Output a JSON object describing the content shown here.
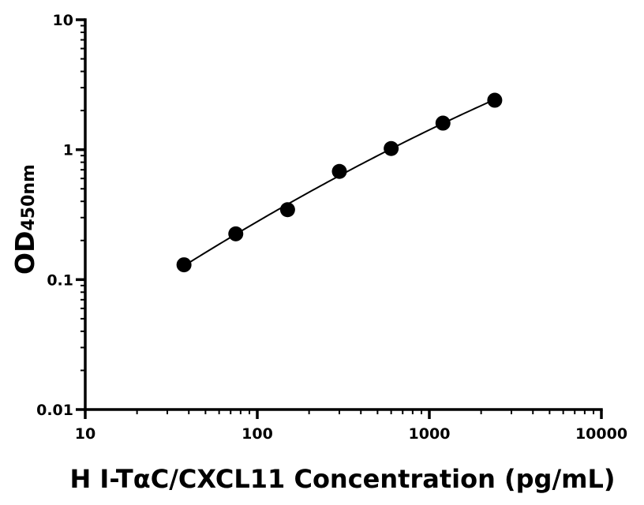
{
  "chart_data": {
    "type": "scatter",
    "title": "",
    "xlabel": "H I-TαC/CXCL11 Concentration (pg/mL)",
    "ylabel_main": "OD",
    "ylabel_sub": "450nm",
    "x_scale": "log",
    "y_scale": "log",
    "xlim": [
      10,
      10000
    ],
    "ylim": [
      0.01,
      10
    ],
    "x_ticks": [
      {
        "value": 10,
        "label": "10"
      },
      {
        "value": 100,
        "label": "100"
      },
      {
        "value": 1000,
        "label": "1000"
      },
      {
        "value": 10000,
        "label": "10000"
      }
    ],
    "y_ticks": [
      {
        "value": 0.01,
        "label": "0.01"
      },
      {
        "value": 0.1,
        "label": "0.1"
      },
      {
        "value": 1,
        "label": "1"
      },
      {
        "value": 10,
        "label": "10"
      }
    ],
    "series": [
      {
        "points": [
          {
            "x": 37.5,
            "y": 0.13
          },
          {
            "x": 75,
            "y": 0.225
          },
          {
            "x": 150,
            "y": 0.345
          },
          {
            "x": 300,
            "y": 0.68
          },
          {
            "x": 600,
            "y": 1.02
          },
          {
            "x": 1200,
            "y": 1.6
          },
          {
            "x": 2400,
            "y": 2.4
          }
        ],
        "fit_line": true,
        "color": "#000000"
      }
    ],
    "grid": false,
    "legend": "none"
  }
}
